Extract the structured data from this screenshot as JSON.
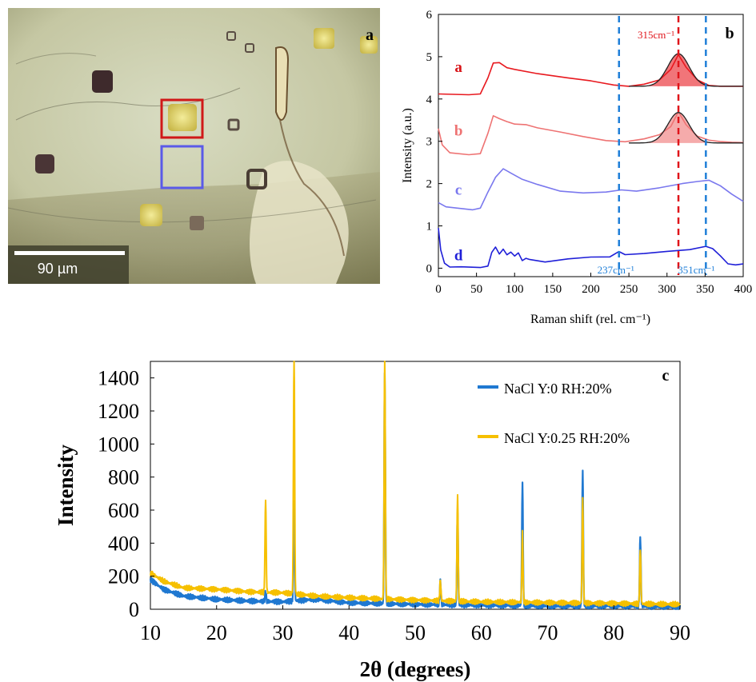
{
  "panel_a": {
    "label": "a",
    "scale_bar": "90 µm",
    "colors": {
      "red_box": "#d01818",
      "blue_box": "#5a5ae8"
    }
  },
  "chart_data": [
    {
      "panel": "b",
      "type": "line",
      "xlabel": "Raman shift (rel. cm⁻¹)",
      "ylabel": "Intensity (a.u.)",
      "xlim": [
        0,
        400
      ],
      "ylim": [
        -0.2,
        6
      ],
      "xticks": [
        0,
        50,
        100,
        150,
        200,
        250,
        300,
        350,
        400
      ],
      "yticks": [
        0,
        1,
        2,
        3,
        4,
        5,
        6
      ],
      "grid": false,
      "series": [
        {
          "name": "a",
          "color": "#e8191f",
          "x": [
            0,
            40,
            55,
            65,
            72,
            80,
            90,
            100,
            130,
            170,
            200,
            230,
            250,
            270,
            290,
            305,
            315,
            325,
            340,
            355,
            370,
            385,
            400
          ],
          "y": [
            4.12,
            4.1,
            4.12,
            4.5,
            4.85,
            4.86,
            4.74,
            4.7,
            4.6,
            4.5,
            4.43,
            4.33,
            4.3,
            4.35,
            4.45,
            4.7,
            5.05,
            4.75,
            4.45,
            4.32,
            4.3,
            4.3,
            4.3
          ]
        },
        {
          "name": "b",
          "color": "#ee7373",
          "x": [
            0,
            5,
            15,
            40,
            55,
            65,
            72,
            80,
            90,
            100,
            115,
            130,
            160,
            190,
            220,
            245,
            270,
            290,
            305,
            315,
            325,
            340,
            355,
            370,
            385,
            400
          ],
          "y": [
            3.3,
            2.9,
            2.72,
            2.7,
            2.72,
            3.2,
            3.6,
            3.55,
            3.45,
            3.4,
            3.38,
            3.3,
            3.2,
            3.1,
            3.02,
            2.97,
            3.05,
            3.15,
            3.35,
            3.68,
            3.4,
            3.12,
            3.02,
            2.98,
            2.96,
            2.95
          ]
        },
        {
          "name": "c",
          "color": "#7a78ee",
          "x": [
            0,
            10,
            25,
            45,
            55,
            65,
            75,
            85,
            95,
            110,
            130,
            160,
            190,
            220,
            240,
            260,
            290,
            320,
            340,
            355,
            370,
            385,
            400
          ],
          "y": [
            1.55,
            1.45,
            1.42,
            1.38,
            1.42,
            1.8,
            2.15,
            2.35,
            2.25,
            2.1,
            1.98,
            1.82,
            1.78,
            1.8,
            1.85,
            1.82,
            1.9,
            2.0,
            2.05,
            2.08,
            1.95,
            1.75,
            1.58
          ]
        },
        {
          "name": "d",
          "color": "#1f1fd8",
          "x": [
            0,
            3,
            8,
            15,
            30,
            55,
            65,
            70,
            75,
            80,
            85,
            90,
            95,
            100,
            105,
            110,
            115,
            120,
            140,
            170,
            200,
            225,
            237,
            245,
            270,
            300,
            330,
            351,
            360,
            370,
            380,
            390,
            400
          ],
          "y": [
            0.95,
            0.45,
            0.1,
            0.02,
            0.02,
            0.03,
            0.06,
            0.38,
            0.48,
            0.35,
            0.45,
            0.3,
            0.4,
            0.28,
            0.35,
            0.2,
            0.22,
            0.2,
            0.16,
            0.22,
            0.25,
            0.28,
            0.38,
            0.3,
            0.34,
            0.38,
            0.42,
            0.52,
            0.45,
            0.28,
            0.12,
            0.08,
            0.08
          ]
        }
      ],
      "fit_peaks": [
        {
          "series": "a",
          "center": 315,
          "height": 0.77,
          "base": 4.3,
          "sigma": 14,
          "range": [
            250,
            400
          ]
        },
        {
          "series": "b",
          "center": 315,
          "height": 0.72,
          "base": 2.96,
          "sigma": 14,
          "range": [
            250,
            400
          ]
        }
      ],
      "reference_lines": [
        {
          "x": 237,
          "color": "#1f7fd8",
          "label": "237cm⁻¹"
        },
        {
          "x": 315,
          "color": "#e0141a",
          "label": "315cm⁻¹"
        },
        {
          "x": 351,
          "color": "#1f7fd8",
          "label": "351cm⁻¹"
        }
      ],
      "curve_labels": [
        {
          "text": "a",
          "x": 18,
          "y": 4.75,
          "color": "#d81418"
        },
        {
          "text": "b",
          "x": 18,
          "y": 3.25,
          "color": "#ee7373"
        },
        {
          "text": "c",
          "x": 18,
          "y": 1.85,
          "color": "#7a78ee"
        },
        {
          "text": "d",
          "x": 18,
          "y": 0.3,
          "color": "#1f1fd8"
        }
      ]
    },
    {
      "panel": "c",
      "type": "line",
      "xlabel": "2θ (degrees)",
      "ylabel": "Intensity",
      "xlim": [
        10,
        90
      ],
      "ylim": [
        0,
        1500
      ],
      "xticks": [
        10,
        20,
        30,
        40,
        50,
        60,
        70,
        80,
        90
      ],
      "yticks": [
        0,
        200,
        400,
        600,
        800,
        1000,
        1200,
        1400
      ],
      "grid": false,
      "legend": "top-right",
      "series": [
        {
          "name": "NaCl Y:0 RH:20%",
          "color": "#1f78d1",
          "baseline": [
            [
              10,
              180
            ],
            [
              12,
              120
            ],
            [
              15,
              80
            ],
            [
              20,
              60
            ],
            [
              25,
              50
            ],
            [
              30,
              45
            ],
            [
              35,
              60
            ],
            [
              40,
              40
            ],
            [
              50,
              30
            ],
            [
              60,
              25
            ],
            [
              70,
              20
            ],
            [
              80,
              20
            ],
            [
              90,
              15
            ]
          ],
          "peaks": [
            [
              27.4,
              60
            ],
            [
              31.7,
              600
            ],
            [
              45.4,
              1400
            ],
            [
              53.8,
              140
            ],
            [
              56.4,
              560
            ],
            [
              66.2,
              740
            ],
            [
              75.3,
              820
            ],
            [
              84.0,
              430
            ]
          ]
        },
        {
          "name": "NaCl Y:0.25 RH:20%",
          "color": "#f6c000",
          "baseline": [
            [
              10,
              220
            ],
            [
              12,
              170
            ],
            [
              15,
              130
            ],
            [
              20,
              120
            ],
            [
              25,
              105
            ],
            [
              30,
              100
            ],
            [
              35,
              80
            ],
            [
              40,
              70
            ],
            [
              50,
              55
            ],
            [
              60,
              45
            ],
            [
              70,
              40
            ],
            [
              80,
              35
            ],
            [
              90,
              30
            ]
          ],
          "peaks": [
            [
              27.4,
              570
            ],
            [
              31.7,
              1500
            ],
            [
              45.4,
              1500
            ],
            [
              53.8,
              120
            ],
            [
              56.4,
              640
            ],
            [
              66.2,
              420
            ],
            [
              75.3,
              630
            ],
            [
              84.0,
              335
            ]
          ]
        }
      ]
    }
  ]
}
